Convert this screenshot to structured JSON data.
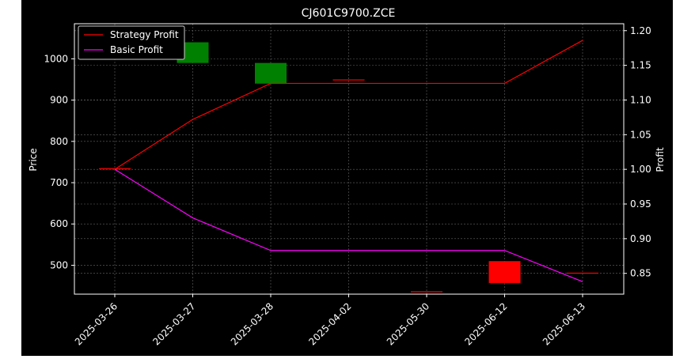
{
  "chart_data": {
    "type": "candlestick",
    "title": "CJ601C9700.ZCE",
    "ylabel": "Price",
    "y2label": "Profit",
    "ylim": [
      430,
      1085
    ],
    "y2lim": [
      0.82,
      1.21
    ],
    "yticks": [
      500,
      600,
      700,
      800,
      900,
      1000
    ],
    "y2ticks": [
      0.85,
      0.9,
      0.95,
      1.0,
      1.05,
      1.1,
      1.15,
      1.2
    ],
    "y2tick_labels": [
      "0.85",
      "0.90",
      "0.95",
      "1.00",
      "1.05",
      "1.10",
      "1.15",
      "1.20"
    ],
    "categories": [
      "2025-03-26",
      "2025-03-27",
      "2025-03-28",
      "2025-04-02",
      "2025-05-30",
      "2025-06-12",
      "2025-06-13"
    ],
    "candles": [
      {
        "date": "2025-03-26",
        "open": 735,
        "close": 735,
        "color": "#ff0000"
      },
      {
        "date": "2025-03-27",
        "open": 990,
        "close": 1040,
        "color": "#008000"
      },
      {
        "date": "2025-03-28",
        "open": 940,
        "close": 990,
        "color": "#008000"
      },
      {
        "date": "2025-04-02",
        "open": 950,
        "close": 950,
        "color": "#ff0000"
      },
      {
        "date": "2025-05-30",
        "open": 437,
        "close": 437,
        "color": "#ff0000"
      },
      {
        "date": "2025-06-12",
        "open": 510,
        "close": 457,
        "color": "#ff0000"
      },
      {
        "date": "2025-06-13",
        "open": 482,
        "close": 482,
        "color": "#ff0000"
      }
    ],
    "series": [
      {
        "name": "Strategy Profit",
        "color": "#ff0000",
        "axis": "right",
        "values": [
          1.0,
          1.072,
          1.124,
          1.124,
          1.124,
          1.124,
          1.186
        ]
      },
      {
        "name": "Basic Profit",
        "color": "#ff00ff",
        "axis": "right",
        "values": [
          1.0,
          0.93,
          0.883,
          0.883,
          0.883,
          0.883,
          0.838
        ]
      }
    ],
    "grid": true,
    "legend": "top-left",
    "colors": {
      "background": "#000000",
      "outer": "#ffffff",
      "text": "#ffffff",
      "grid": "#666666",
      "up": "#008000",
      "down": "#ff0000"
    }
  }
}
